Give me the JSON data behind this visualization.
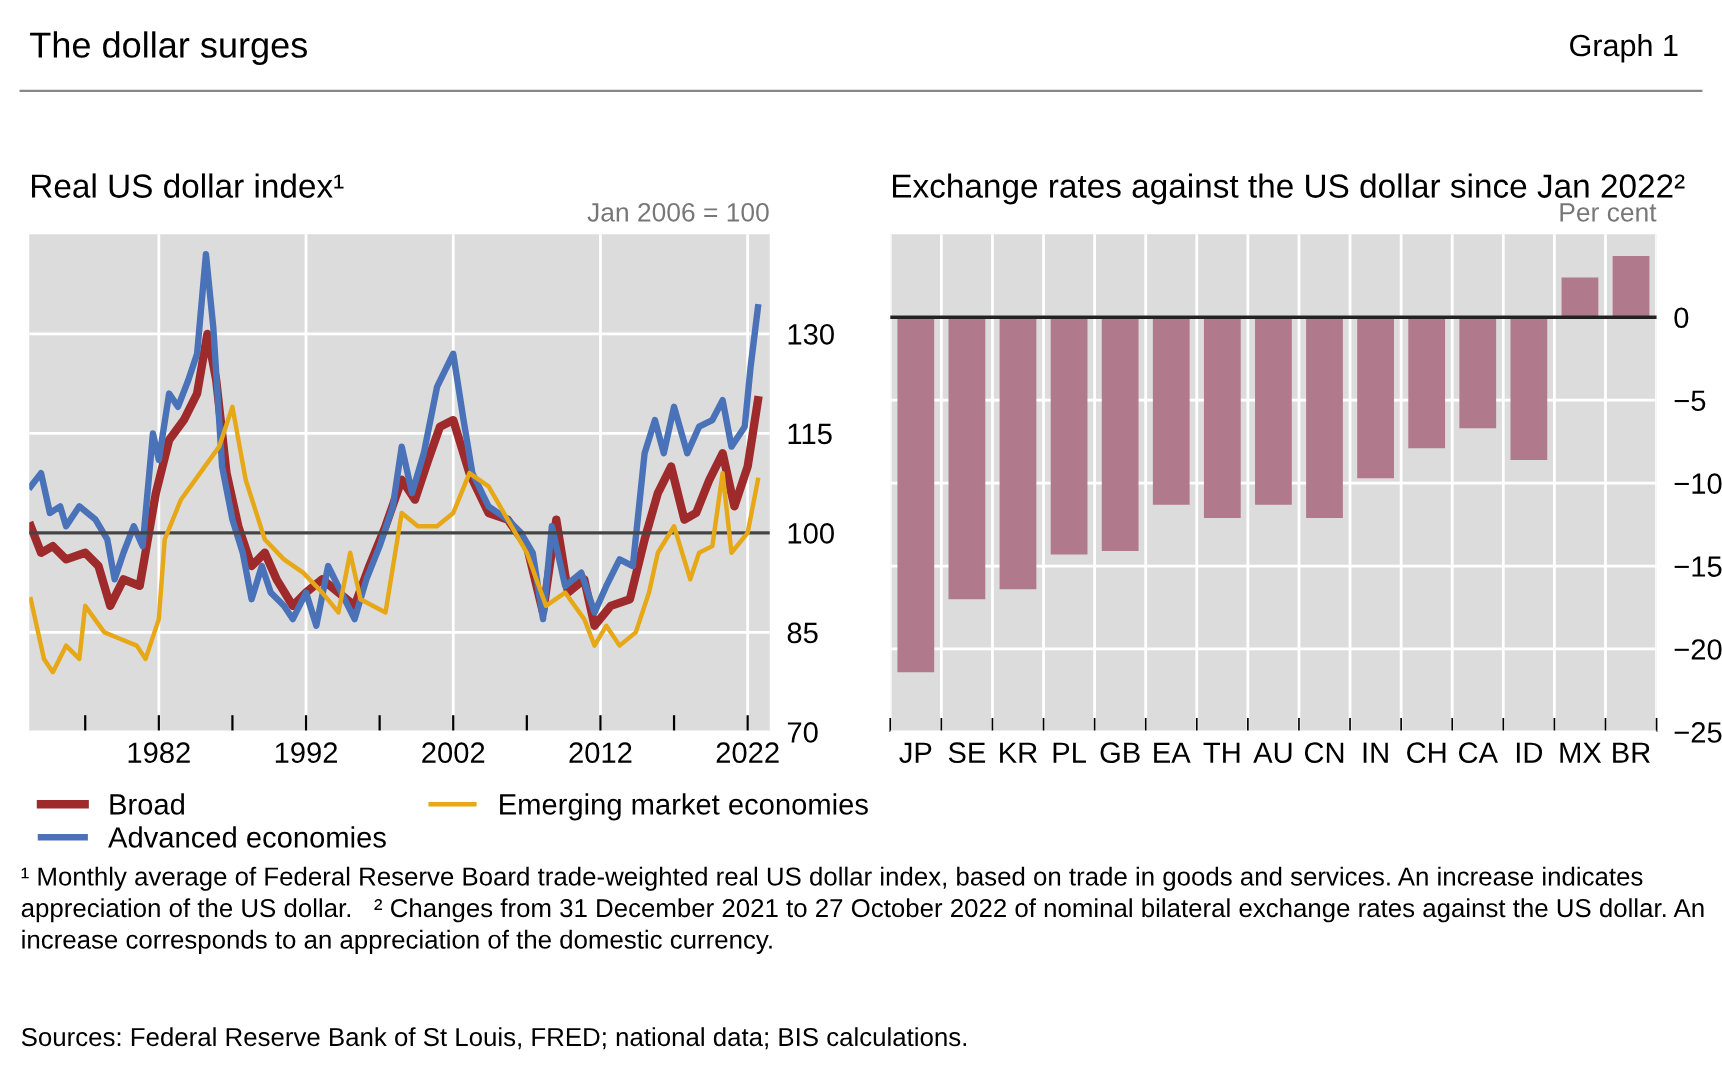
{
  "chart_data": [
    {
      "type": "line",
      "title": "Real US dollar index¹",
      "ylabel": "Jan 2006 = 100",
      "annotations": [
        "The dollar surges",
        "Graph 1"
      ],
      "xlim": [
        1973.2,
        2023.5
      ],
      "xticks": [
        {
          "value": 1977,
          "label": null
        },
        1982,
        {
          "value": 1987,
          "label": null
        },
        1992,
        {
          "value": 1997,
          "label": null
        },
        2002,
        {
          "value": 2007,
          "label": null
        },
        2012,
        {
          "value": 2017,
          "label": null
        },
        2022
      ],
      "ylim": [
        70,
        145
      ],
      "yticks": [
        70,
        85,
        100,
        115,
        130
      ],
      "grid": true,
      "legend": "bottom",
      "ref_lines": [
        {
          "axis": "y",
          "value": 100,
          "color": "#444444"
        }
      ],
      "series": [
        {
          "name": "Broad",
          "color": "#9e2a2b",
          "x": [
            1973.3,
            1974.0,
            1974.8,
            1975.7,
            1977.0,
            1977.9,
            1978.7,
            1979.6,
            1980.7,
            1981.8,
            1982.7,
            1983.7,
            1984.6,
            1985.3,
            1985.9,
            1986.6,
            1987.4,
            1988.3,
            1989.2,
            1990.0,
            1991.1,
            1992.0,
            1993.1,
            1994.2,
            1995.3,
            1996.3,
            1997.4,
            1998.5,
            1999.4,
            2000.3,
            2001.1,
            2002.0,
            2003.1,
            2004.4,
            2005.7,
            2007.0,
            2008.1,
            2009.0,
            2009.8,
            2010.9,
            2011.6,
            2012.7,
            2014.0,
            2015.0,
            2015.9,
            2016.8,
            2017.7,
            2018.5,
            2019.4,
            2020.3,
            2021.1,
            2022.0,
            2022.7
          ],
          "values": [
            101,
            97,
            98,
            96,
            97,
            95,
            89,
            93,
            92,
            106,
            114,
            117,
            121,
            130,
            123,
            109,
            101,
            95,
            97,
            93,
            89,
            91,
            93,
            91,
            89,
            95,
            101,
            108,
            105,
            111,
            116,
            117,
            109,
            103,
            102,
            98,
            88,
            102,
            91,
            93,
            86,
            89,
            90,
            99,
            106,
            110,
            102,
            103,
            108,
            112,
            104,
            110,
            120
          ]
        },
        {
          "name": "Advanced economies",
          "color": "#4a72b8",
          "x": [
            1973.3,
            1974.0,
            1974.6,
            1975.3,
            1975.7,
            1976.6,
            1977.7,
            1978.5,
            1979.0,
            1979.6,
            1980.3,
            1980.9,
            1981.6,
            1982.0,
            1982.7,
            1983.3,
            1984.0,
            1984.6,
            1985.2,
            1985.7,
            1986.3,
            1987.0,
            1987.7,
            1988.3,
            1989.0,
            1989.6,
            1990.5,
            1991.1,
            1992.0,
            1992.7,
            1993.5,
            1994.4,
            1995.3,
            1996.1,
            1997.0,
            1997.9,
            1998.5,
            1999.2,
            2000.0,
            2000.9,
            2002.0,
            2002.7,
            2003.3,
            2004.4,
            2005.7,
            2006.6,
            2007.4,
            2008.1,
            2008.7,
            2009.6,
            2010.7,
            2011.6,
            2012.4,
            2013.3,
            2014.2,
            2015.0,
            2015.7,
            2016.3,
            2017.0,
            2017.9,
            2018.7,
            2019.6,
            2020.3,
            2020.9,
            2021.8,
            2022.2,
            2022.7
          ],
          "values": [
            107,
            109,
            103,
            104,
            101,
            104,
            102,
            99,
            93,
            97,
            101,
            98,
            115,
            111,
            121,
            119,
            123,
            127,
            142,
            131,
            110,
            102,
            97,
            90,
            95,
            91,
            89,
            87,
            91,
            86,
            95,
            91,
            87,
            93,
            98,
            104,
            113,
            106,
            112,
            122,
            127,
            117,
            109,
            104,
            102,
            100,
            97,
            87,
            101,
            92,
            94,
            88,
            92,
            96,
            95,
            112,
            117,
            112,
            119,
            112,
            116,
            117,
            120,
            113,
            116,
            125,
            134
          ]
        },
        {
          "name": "Emerging market economies",
          "color": "#e6a817",
          "x": [
            1973.3,
            1974.2,
            1974.8,
            1975.7,
            1976.6,
            1977.0,
            1978.3,
            1979.4,
            1980.5,
            1981.1,
            1982.0,
            1982.4,
            1983.5,
            1984.8,
            1986.1,
            1987.0,
            1987.9,
            1989.2,
            1990.5,
            1991.8,
            1993.1,
            1994.2,
            1995.0,
            1995.7,
            1997.4,
            1998.5,
            1999.6,
            2000.9,
            2002.0,
            2003.1,
            2004.4,
            2005.7,
            2007.0,
            2008.3,
            2009.6,
            2010.9,
            2011.6,
            2012.4,
            2013.3,
            2014.4,
            2015.3,
            2015.9,
            2017.0,
            2018.1,
            2018.7,
            2019.6,
            2020.3,
            2020.9,
            2022.0,
            2022.7
          ],
          "values": [
            90,
            81,
            79,
            83,
            81,
            89,
            85,
            84,
            83,
            81,
            87,
            99,
            105,
            109,
            113,
            119,
            108,
            99,
            96,
            94,
            91,
            88,
            97,
            90,
            88,
            103,
            101,
            101,
            103,
            109,
            107,
            102,
            97,
            89,
            91,
            87,
            83,
            86,
            83,
            85,
            91,
            97,
            101,
            93,
            97,
            98,
            109,
            97,
            100,
            108
          ]
        }
      ]
    },
    {
      "type": "bar",
      "title": "Exchange rates against the US dollar since Jan 2022²",
      "ylabel": "Per cent",
      "annotations": [
        "¹ Monthly average of Federal Reserve Board trade-weighted real US dollar index, based on trade in goods and services. An increase indicates appreciation of the US dollar.   ² Changes from 31 December 2021 to 27 October 2022 of nominal bilateral exchange rates against the US dollar. An increase corresponds to an appreciation of the domestic currency.",
        "Sources: Federal Reserve Bank of St Louis, FRED; national data; BIS calculations."
      ],
      "categories": [
        "JP",
        "SE",
        "KR",
        "PL",
        "GB",
        "EA",
        "TH",
        "AU",
        "CN",
        "IN",
        "CH",
        "CA",
        "ID",
        "MX",
        "BR"
      ],
      "values": [
        -21.4,
        -17.0,
        -16.4,
        -14.3,
        -14.1,
        -11.3,
        -12.1,
        -11.3,
        -12.1,
        -9.7,
        -7.9,
        -6.7,
        -8.6,
        2.4,
        3.7
      ],
      "color": "#b07a8c",
      "ylim": [
        -25,
        5
      ],
      "yticks": [
        {
          "value": -25,
          "label": "−25"
        },
        {
          "value": -20,
          "label": "−20"
        },
        {
          "value": -15,
          "label": "−15"
        },
        {
          "value": -10,
          "label": "−10"
        },
        {
          "value": -5,
          "label": "−5"
        },
        0
      ],
      "grid": true,
      "ref_lines": [
        {
          "axis": "y",
          "value": 0,
          "color": "#222222"
        }
      ]
    }
  ]
}
